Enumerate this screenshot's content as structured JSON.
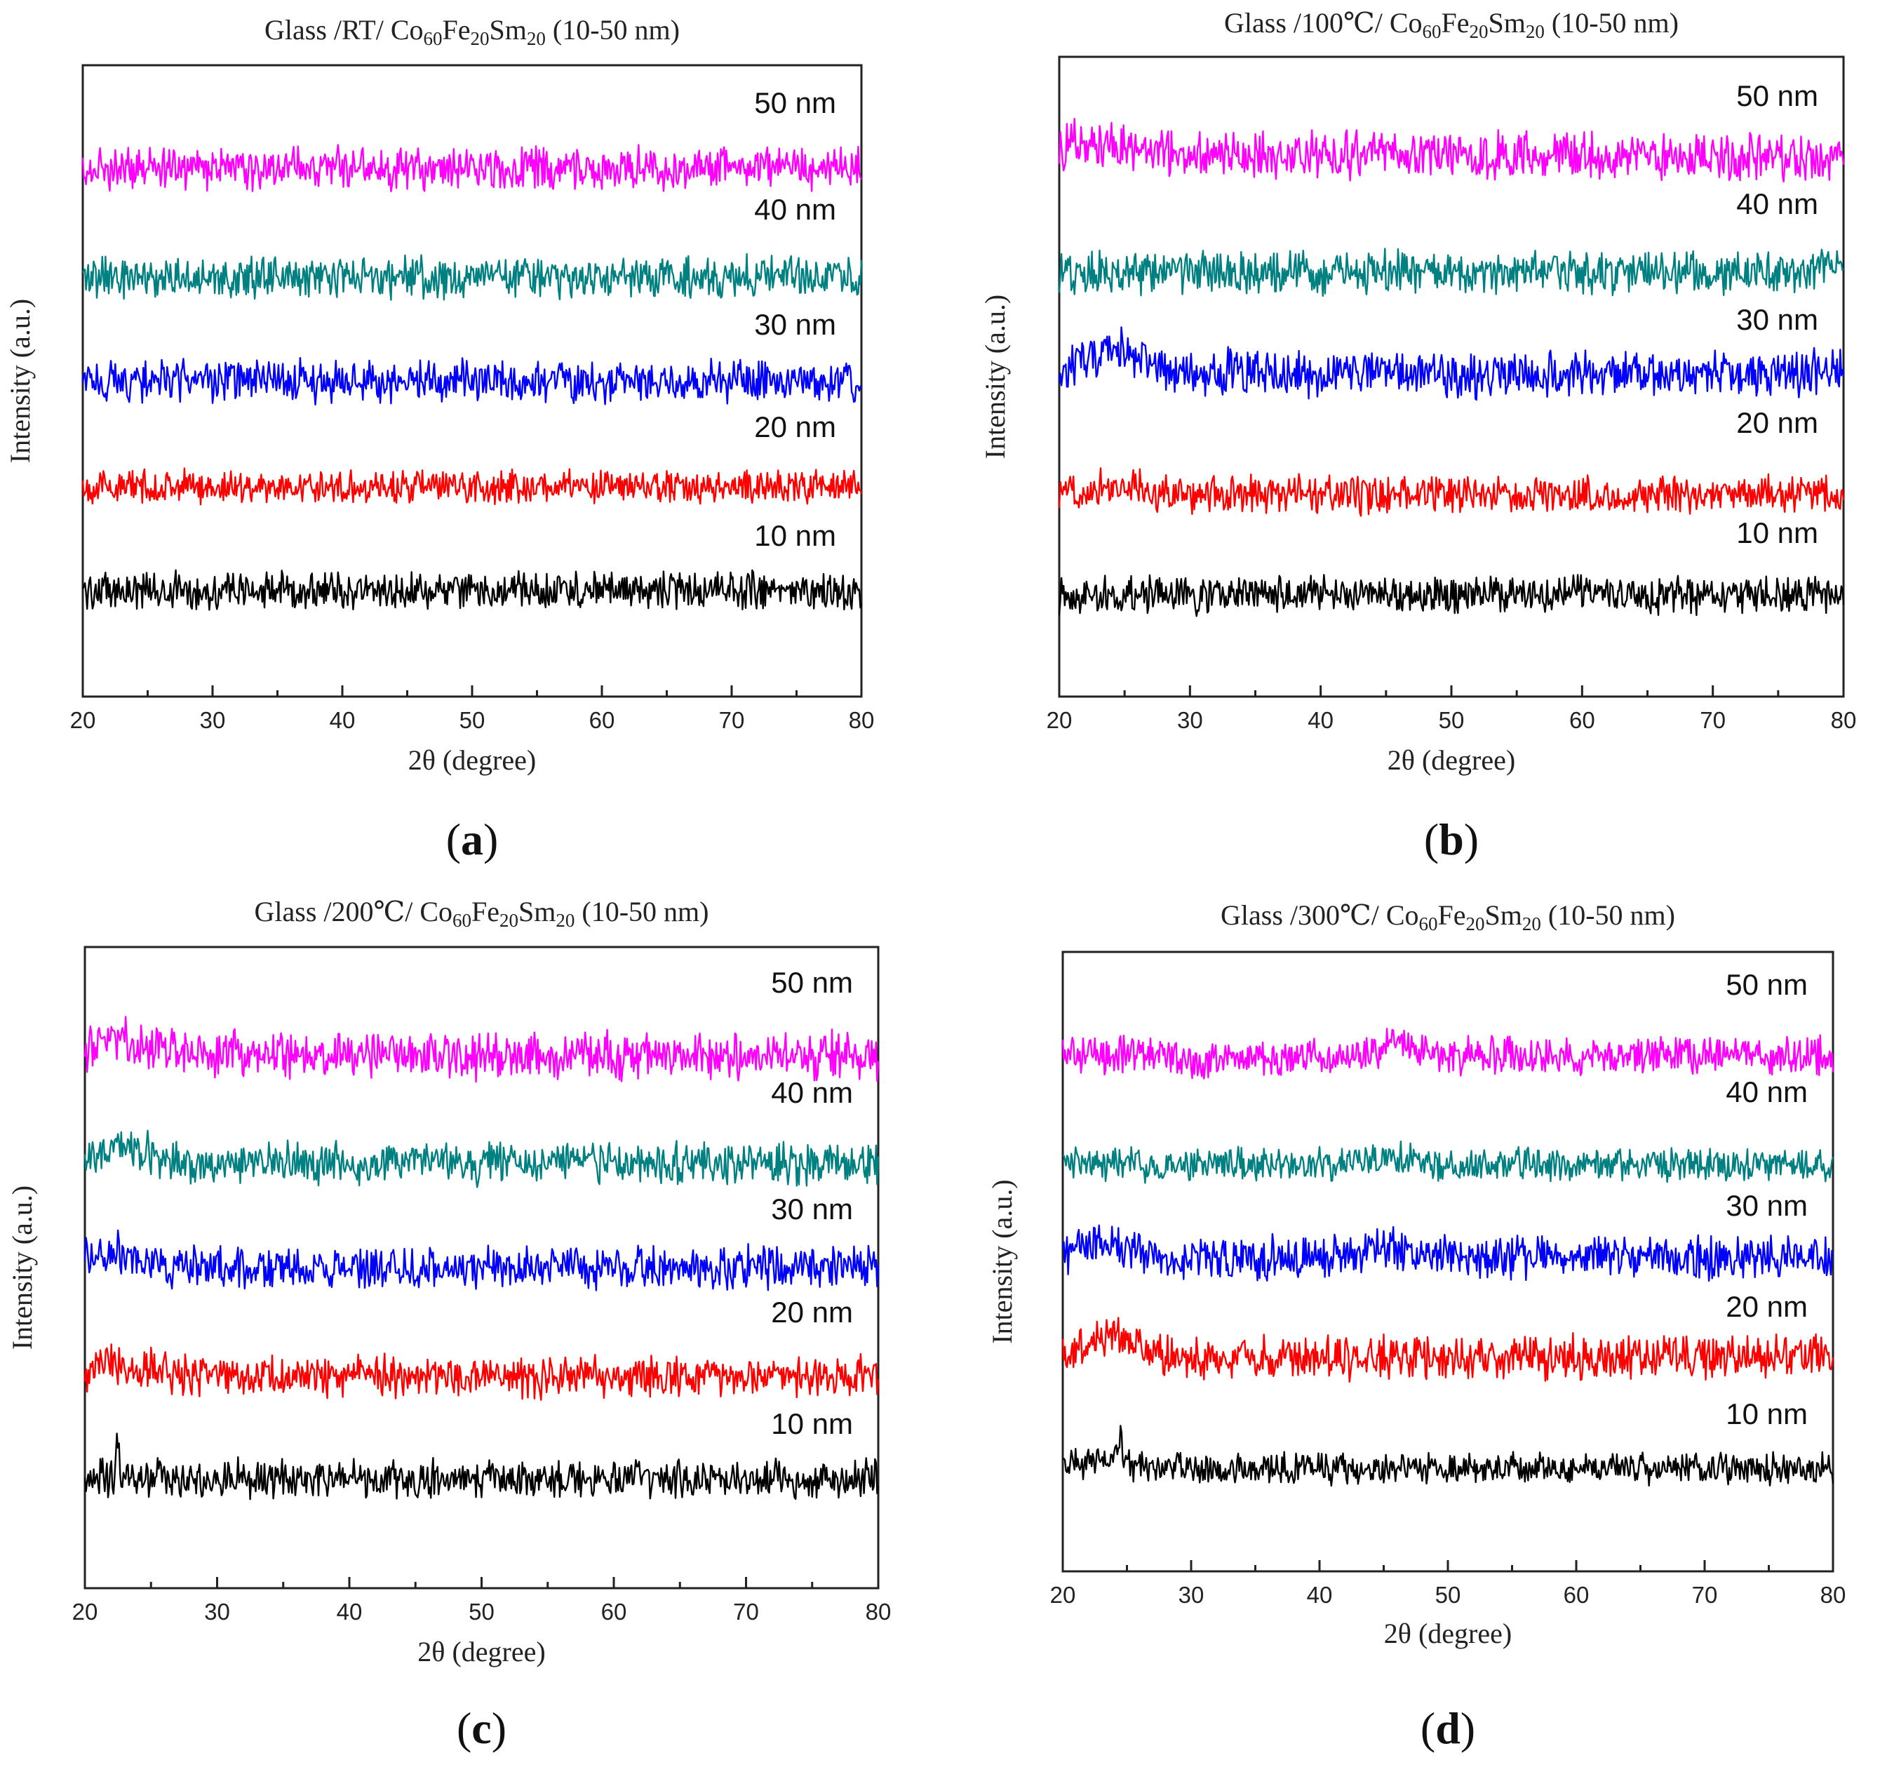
{
  "figure": {
    "colors": {
      "10 nm": "#000000",
      "20 nm": "#ff0000",
      "30 nm": "#0000ff",
      "40 nm": "#008080",
      "50 nm": "#ff00ff"
    }
  },
  "chart_data": [
    {
      "type": "line",
      "panel": "a",
      "caption": "a",
      "title": {
        "prefix": "Glass /RT/ Co",
        "sub1": "60",
        "mid1": "Fe",
        "sub2": "20",
        "mid2": "Sm",
        "sub3": "20",
        "suffix": " (10-50 nm)"
      },
      "xlabel": "2θ (degree)",
      "ylabel": "Intensity (a.u.)",
      "xlim": [
        20,
        80
      ],
      "xticks": [
        20,
        30,
        40,
        50,
        60,
        70,
        80
      ],
      "ylim": [
        0,
        6
      ],
      "series": [
        {
          "name": "10 nm",
          "label": "10 nm",
          "baseline": 1.0,
          "noise": 0.16,
          "features": []
        },
        {
          "name": "20 nm",
          "label": "20 nm",
          "baseline": 2.0,
          "noise": 0.14,
          "features": []
        },
        {
          "name": "30 nm",
          "label": "30 nm",
          "baseline": 3.0,
          "noise": 0.18,
          "features": []
        },
        {
          "name": "40 nm",
          "label": "40 nm",
          "baseline": 4.0,
          "noise": 0.18,
          "features": []
        },
        {
          "name": "50 nm",
          "label": "50 nm",
          "baseline": 5.0,
          "noise": 0.18,
          "features": []
        }
      ]
    },
    {
      "type": "line",
      "panel": "b",
      "caption": "b",
      "title": {
        "prefix": "Glass /100℃/ Co",
        "sub1": "60",
        "mid1": "Fe",
        "sub2": "20",
        "mid2": "Sm",
        "sub3": "20",
        "suffix": " (10-50 nm)"
      },
      "xlabel": "2θ (degree)",
      "ylabel": "Intensity (a.u.)",
      "xlim": [
        20,
        80
      ],
      "xticks": [
        20,
        30,
        40,
        50,
        60,
        70,
        80
      ],
      "ylim": [
        0,
        6
      ],
      "series": [
        {
          "name": "10 nm",
          "label": "10 nm",
          "baseline": 1.0,
          "noise": 0.16,
          "features": []
        },
        {
          "name": "20 nm",
          "label": "20 nm",
          "baseline": 2.0,
          "noise": 0.16,
          "features": [
            {
              "x": 24,
              "w": 3,
              "h": 0.1
            }
          ]
        },
        {
          "name": "30 nm",
          "label": "30 nm",
          "baseline": 3.0,
          "noise": 0.2,
          "features": [
            {
              "x": 24,
              "w": 3,
              "h": 0.25
            }
          ]
        },
        {
          "name": "40 nm",
          "label": "40 nm",
          "baseline": 4.0,
          "noise": 0.18,
          "features": []
        },
        {
          "name": "50 nm",
          "label": "50 nm",
          "baseline": 5.0,
          "noise": 0.2,
          "features": [
            {
              "x": 23,
              "w": 4,
              "h": 0.15
            }
          ]
        }
      ]
    },
    {
      "type": "line",
      "panel": "c",
      "caption": "c",
      "title": {
        "prefix": "Glass /200℃/ Co",
        "sub1": "60",
        "mid1": "Fe",
        "sub2": "20",
        "mid2": "Sm",
        "sub3": "20",
        "suffix": " (10-50 nm)"
      },
      "xlabel": "2θ (degree)",
      "ylabel": "Intensity (a.u.)",
      "xlim": [
        20,
        80
      ],
      "xticks": [
        20,
        30,
        40,
        50,
        60,
        70,
        80
      ],
      "ylim": [
        0,
        6
      ],
      "series": [
        {
          "name": "10 nm",
          "label": "10 nm",
          "baseline": 1.0,
          "noise": 0.16,
          "features": [
            {
              "x": 22.5,
              "w": 0.15,
              "h": 0.45
            }
          ]
        },
        {
          "name": "20 nm",
          "label": "20 nm",
          "baseline": 2.0,
          "noise": 0.18,
          "features": [
            {
              "x": 23,
              "w": 3,
              "h": 0.12
            }
          ]
        },
        {
          "name": "30 nm",
          "label": "30 nm",
          "baseline": 3.0,
          "noise": 0.18,
          "features": [
            {
              "x": 22,
              "w": 3,
              "h": 0.15
            }
          ]
        },
        {
          "name": "40 nm",
          "label": "40 nm",
          "baseline": 4.0,
          "noise": 0.18,
          "features": [
            {
              "x": 23,
              "w": 3,
              "h": 0.15
            }
          ]
        },
        {
          "name": "50 nm",
          "label": "50 nm",
          "baseline": 5.0,
          "noise": 0.2,
          "features": [
            {
              "x": 23,
              "w": 3,
              "h": 0.18
            }
          ]
        }
      ]
    },
    {
      "type": "line",
      "panel": "d",
      "caption": "d",
      "title": {
        "prefix": "Glass /300℃/ Co",
        "sub1": "60",
        "mid1": "Fe",
        "sub2": "20",
        "mid2": "Sm",
        "sub3": "20",
        "suffix": " (10-50 nm)"
      },
      "xlabel": "2θ (degree)",
      "ylabel": "Intensity (a.u.)",
      "xlim": [
        20,
        80
      ],
      "xticks": [
        20,
        30,
        40,
        50,
        60,
        70,
        80
      ],
      "ylim": [
        0,
        6
      ],
      "series": [
        {
          "name": "10 nm",
          "label": "10 nm",
          "baseline": 1.0,
          "noise": 0.13,
          "features": [
            {
              "x": 24.5,
              "w": 0.15,
              "h": 0.35
            },
            {
              "x": 23,
              "w": 3,
              "h": 0.08
            }
          ]
        },
        {
          "name": "20 nm",
          "label": "20 nm",
          "baseline": 2.0,
          "noise": 0.18,
          "features": [
            {
              "x": 24,
              "w": 3,
              "h": 0.2
            }
          ]
        },
        {
          "name": "30 nm",
          "label": "30 nm",
          "baseline": 3.0,
          "noise": 0.18,
          "features": [
            {
              "x": 23,
              "w": 3,
              "h": 0.12
            },
            {
              "x": 45,
              "w": 3,
              "h": 0.1
            }
          ]
        },
        {
          "name": "40 nm",
          "label": "40 nm",
          "baseline": 4.0,
          "noise": 0.14,
          "features": [
            {
              "x": 45,
              "w": 3,
              "h": 0.06
            }
          ]
        },
        {
          "name": "50 nm",
          "label": "50 nm",
          "baseline": 5.0,
          "noise": 0.16,
          "features": [
            {
              "x": 46,
              "w": 3,
              "h": 0.1
            },
            {
              "x": 31,
              "w": 2,
              "h": -0.08
            }
          ]
        }
      ]
    }
  ]
}
